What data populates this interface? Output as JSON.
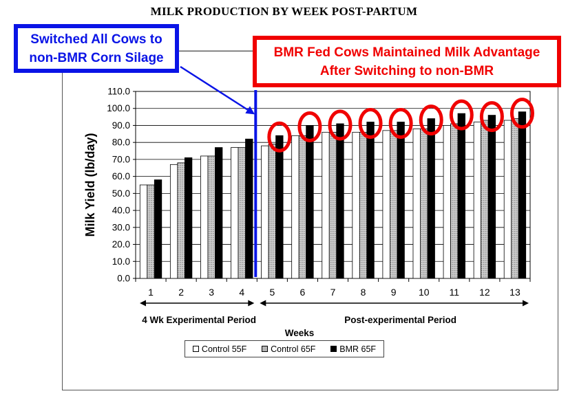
{
  "title": "MILK PRODUCTION BY WEEK POST-PARTUM",
  "annotations": {
    "blue_callout": [
      "Switched All Cows to",
      "non-BMR Corn Silage"
    ],
    "red_callout": [
      "BMR Fed Cows Maintained Milk Advantage",
      "After Switching to non-BMR"
    ],
    "period_left": "4 Wk Experimental Period",
    "period_right": "Post-experimental Period"
  },
  "colors": {
    "blue": "#0a14e6",
    "red": "#f00000",
    "control_55f": "#ffffff",
    "control_65f": "#b4b4b4",
    "bmr_65f": "#000000"
  },
  "chart_data": {
    "type": "bar",
    "title": "MILK PRODUCTION BY WEEK POST-PARTUM",
    "xlabel": "Weeks",
    "ylabel": "Milk Yield (lb/day)",
    "ylim": [
      0,
      110
    ],
    "yticks": [
      "0.0",
      "10.0",
      "20.0",
      "30.0",
      "40.0",
      "50.0",
      "60.0",
      "70.0",
      "80.0",
      "90.0",
      "100.0",
      "110.0"
    ],
    "categories": [
      "1",
      "2",
      "3",
      "4",
      "5",
      "6",
      "7",
      "8",
      "9",
      "10",
      "11",
      "12",
      "13"
    ],
    "series": [
      {
        "name": "Control 55F",
        "values": [
          55,
          67,
          72,
          77,
          78,
          84,
          86,
          86,
          87,
          88,
          90,
          92,
          93
        ]
      },
      {
        "name": "Control 65F",
        "values": [
          55,
          68,
          72,
          77,
          79,
          84,
          86,
          86,
          87,
          88,
          91,
          93,
          94
        ]
      },
      {
        "name": "BMR 65F",
        "values": [
          58,
          71,
          77,
          82,
          84,
          90,
          91,
          92,
          92,
          94,
          97,
          96,
          98
        ]
      }
    ],
    "highlighted_weeks": [
      "5",
      "6",
      "7",
      "8",
      "9",
      "10",
      "11",
      "12",
      "13"
    ],
    "switch_after_week": "4",
    "grid": true,
    "legend_position": "bottom"
  }
}
